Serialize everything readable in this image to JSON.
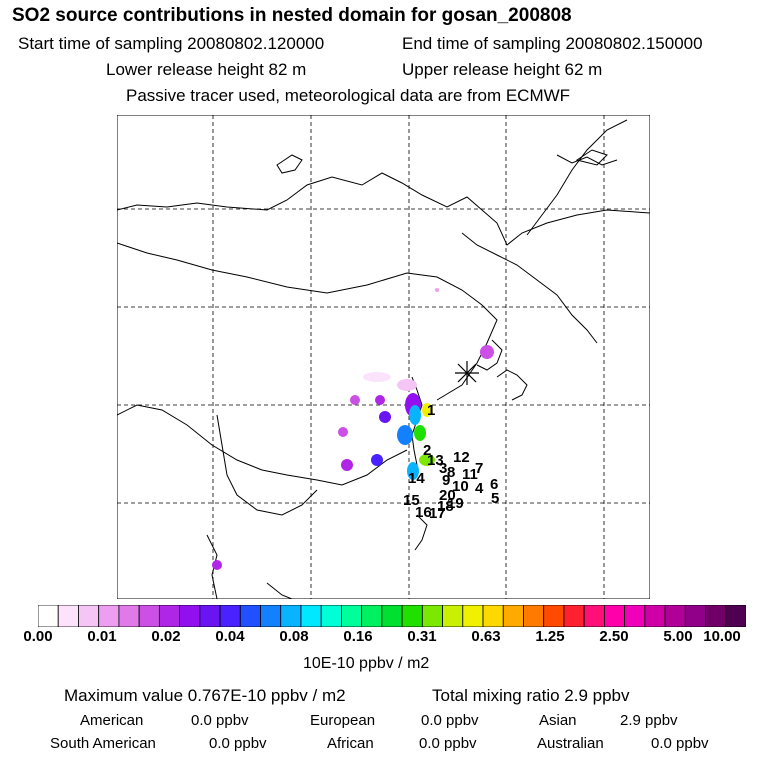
{
  "header": {
    "title": "SO2 source contributions in nested domain for gosan_200808",
    "start_time": "Start time of sampling 20080802.120000",
    "end_time": "End time of sampling 20080802.150000",
    "lower_height": "Lower release height   82 m",
    "upper_height": "Upper release height   62 m",
    "tracer_note": "Passive tracer used, meteorological data are from ECMWF"
  },
  "map": {
    "receptor_marker": "asterisk-icon",
    "source_labels": [
      "1",
      "2",
      "13",
      "12",
      "8",
      "11",
      "7",
      "9",
      "10",
      "4",
      "6",
      "14",
      "15",
      "20",
      "18",
      "19",
      "16",
      "17",
      "5",
      "3"
    ]
  },
  "colorbar": {
    "colors": [
      "#ffffff",
      "#fbe3fb",
      "#f5c5f5",
      "#ee9ef0",
      "#e07ae8",
      "#cc50e6",
      "#b026e6",
      "#9210ef",
      "#6a14f2",
      "#4a22ff",
      "#2050ff",
      "#1280ff",
      "#08b4ff",
      "#00e8ff",
      "#00ffd6",
      "#00ff9a",
      "#00f060",
      "#00e030",
      "#20e000",
      "#7ae800",
      "#c8f000",
      "#f0f000",
      "#ffd800",
      "#ffaa00",
      "#ff7a00",
      "#ff4a00",
      "#ff2030",
      "#ff1078",
      "#ff00aa",
      "#f000b8",
      "#d000a8",
      "#b00098",
      "#900088",
      "#700068",
      "#500050"
    ],
    "ticks": [
      "0.00",
      "0.01",
      "0.02",
      "0.04",
      "0.08",
      "0.16",
      "0.31",
      "0.63",
      "1.25",
      "2.50",
      "5.00",
      "10.00"
    ],
    "units": "10E-10 ppbv / m2"
  },
  "stats": {
    "max_value": "Maximum value  0.767E-10 ppbv / m2",
    "total_mixing": "Total mixing ratio       2.9 ppbv",
    "regions": [
      {
        "name": "American",
        "value": "0.0 ppbv"
      },
      {
        "name": "European",
        "value": "0.0 ppbv"
      },
      {
        "name": "Asian",
        "value": "2.9 ppbv"
      },
      {
        "name": "South American",
        "value": "0.0 ppbv"
      },
      {
        "name": "African",
        "value": "0.0 ppbv"
      },
      {
        "name": "Australian",
        "value": "0.0 ppbv"
      }
    ]
  }
}
